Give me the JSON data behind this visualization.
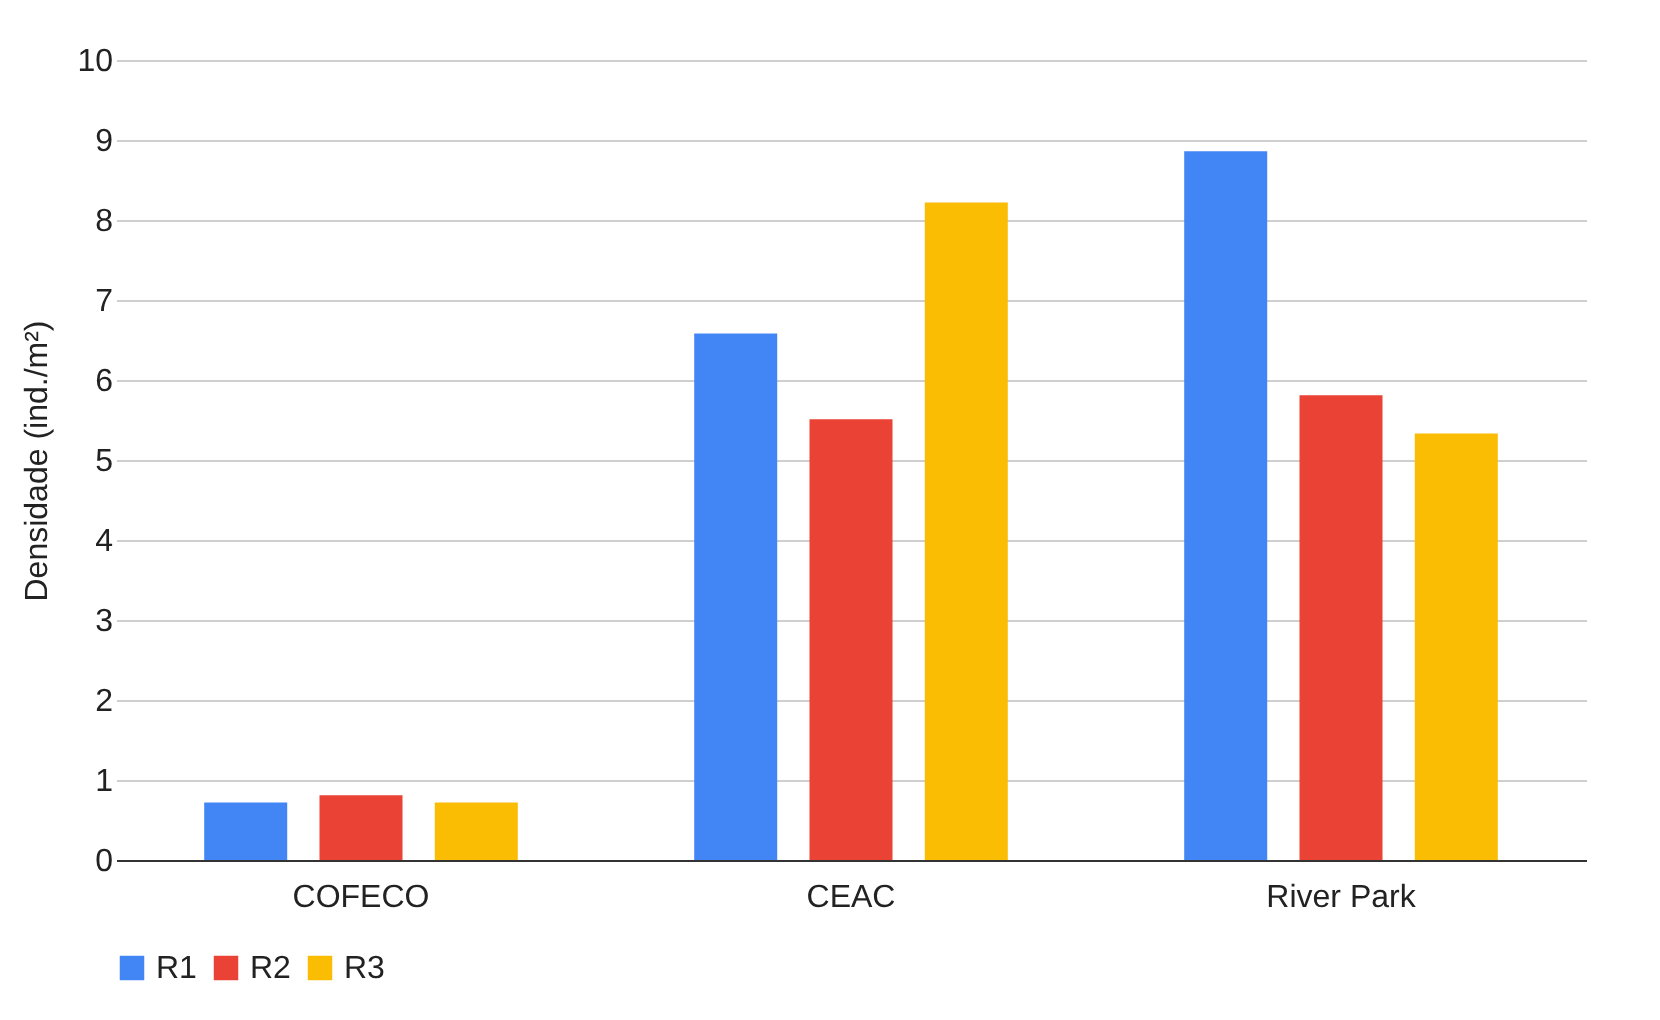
{
  "chart_data": {
    "type": "bar",
    "ylabel": "Densidade (ind./m²)",
    "categories": [
      "COFECO",
      "CEAC",
      "River Park"
    ],
    "series": [
      {
        "name": "R1",
        "color": "#4285f4",
        "values": [
          0.72,
          6.58,
          8.86
        ]
      },
      {
        "name": "R2",
        "color": "#ea4335",
        "values": [
          0.81,
          5.51,
          5.81
        ]
      },
      {
        "name": "R3",
        "color": "#fbbc04",
        "values": [
          0.72,
          8.22,
          5.33
        ]
      }
    ],
    "ylim": [
      0,
      10
    ],
    "yticks": [
      0,
      1,
      2,
      3,
      4,
      5,
      6,
      7,
      8,
      9,
      10
    ],
    "grid": "y",
    "legend": "bottom"
  }
}
